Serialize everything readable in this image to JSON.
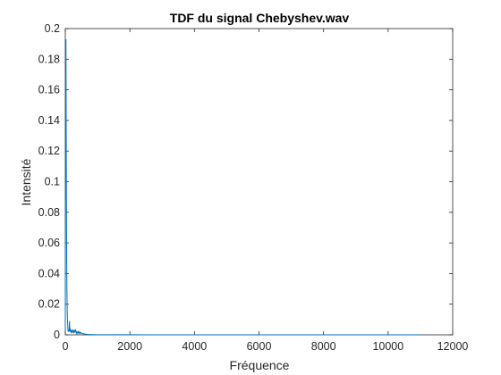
{
  "chart_data": {
    "type": "line",
    "title": "TDF du signal Chebyshev.wav",
    "xlabel": "Fréquence",
    "ylabel": "Intensité",
    "xlim": [
      0,
      12000
    ],
    "ylim": [
      0,
      0.2
    ],
    "xticks": [
      0,
      2000,
      4000,
      6000,
      8000,
      10000,
      12000
    ],
    "yticks": [
      0,
      0.02,
      0.04,
      0.06,
      0.08,
      0.1,
      0.12,
      0.14,
      0.16,
      0.18,
      0.2
    ],
    "xtick_labels": [
      "0",
      "2000",
      "4000",
      "6000",
      "8000",
      "10000",
      "12000"
    ],
    "ytick_labels": [
      "0",
      "0.02",
      "0.04",
      "0.06",
      "0.08",
      "0.1",
      "0.12",
      "0.14",
      "0.16",
      "0.18",
      "0.2"
    ],
    "grid": false,
    "legend": "none",
    "color": "#0072BD",
    "series": [
      {
        "x": [
          0,
          10,
          20,
          30,
          40,
          50,
          60,
          70,
          80,
          90,
          100,
          110,
          120,
          130,
          140,
          150,
          160,
          170,
          180,
          190,
          200,
          220,
          240,
          260,
          280,
          300,
          320,
          340,
          360,
          380,
          400,
          420,
          440,
          460,
          480,
          500,
          550,
          600,
          700,
          800,
          1000,
          1500,
          2000,
          3000,
          4000,
          5000,
          6000,
          7000,
          8000,
          9000,
          10000,
          11000
        ],
        "y": [
          0.003,
          0.19,
          0.193,
          0.12,
          0.06,
          0.03,
          0.015,
          0.008,
          0.004,
          0.002,
          0.003,
          0.002,
          0.004,
          0.009,
          0.003,
          0.002,
          0.004,
          0.002,
          0.003,
          0.001,
          0.003,
          0.002,
          0.003,
          0.001,
          0.003,
          0.002,
          0.003,
          0.001,
          0.002,
          0.001,
          0.002,
          0.001,
          0.002,
          0.001,
          0.0015,
          0.001,
          0.0007,
          0.0005,
          0.0003,
          0.0002,
          0.0001,
          6e-05,
          4e-05,
          3e-05,
          2e-05,
          2e-05,
          1e-05,
          1e-05,
          1e-05,
          1e-05,
          1e-05,
          1e-05
        ]
      }
    ]
  }
}
